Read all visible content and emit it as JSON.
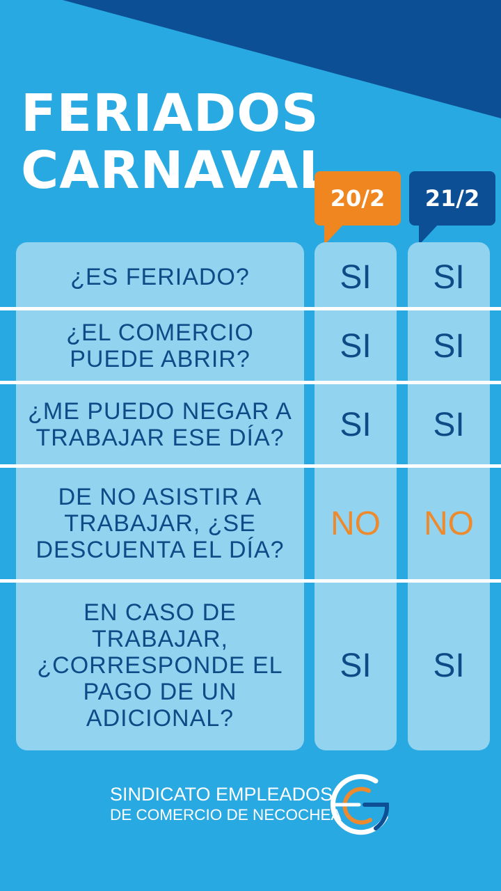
{
  "title": {
    "line1": "FERIADOS",
    "line2": "CARNAVAL"
  },
  "dates": [
    {
      "label": "20/2",
      "color": "#f0861f"
    },
    {
      "label": "21/2",
      "color": "#0d4f95"
    }
  ],
  "rows": [
    {
      "question": "¿ES FERIADO?",
      "answers": [
        "SI",
        "SI"
      ]
    },
    {
      "question": "¿EL COMERCIO PUEDE ABRIR?",
      "answers": [
        "SI",
        "SI"
      ]
    },
    {
      "question": "¿ME PUEDO NEGAR A TRABAJAR ESE DÍA?",
      "answers": [
        "SI",
        "SI"
      ]
    },
    {
      "question": "DE NO ASISTIR A TRABAJAR, ¿SE DESCUENTA EL DÍA?",
      "answers": [
        "NO",
        "NO"
      ]
    },
    {
      "question": "EN CASO DE TRABAJAR, ¿CORRESPONDE EL PAGO DE UN ADICIONAL?",
      "answers": [
        "SI",
        "SI"
      ]
    }
  ],
  "footer": {
    "line1": "SINDICATO EMPLEADOS",
    "line2": "DE COMERCIO DE NECOCHEA"
  },
  "colors": {
    "background": "#29a9e1",
    "corner": "#0d4f95",
    "panel": "#92d3f0",
    "text": "#0e4a86",
    "orange": "#ee8a2e"
  },
  "logo": {
    "icon": "sindicato-logo-icon"
  }
}
